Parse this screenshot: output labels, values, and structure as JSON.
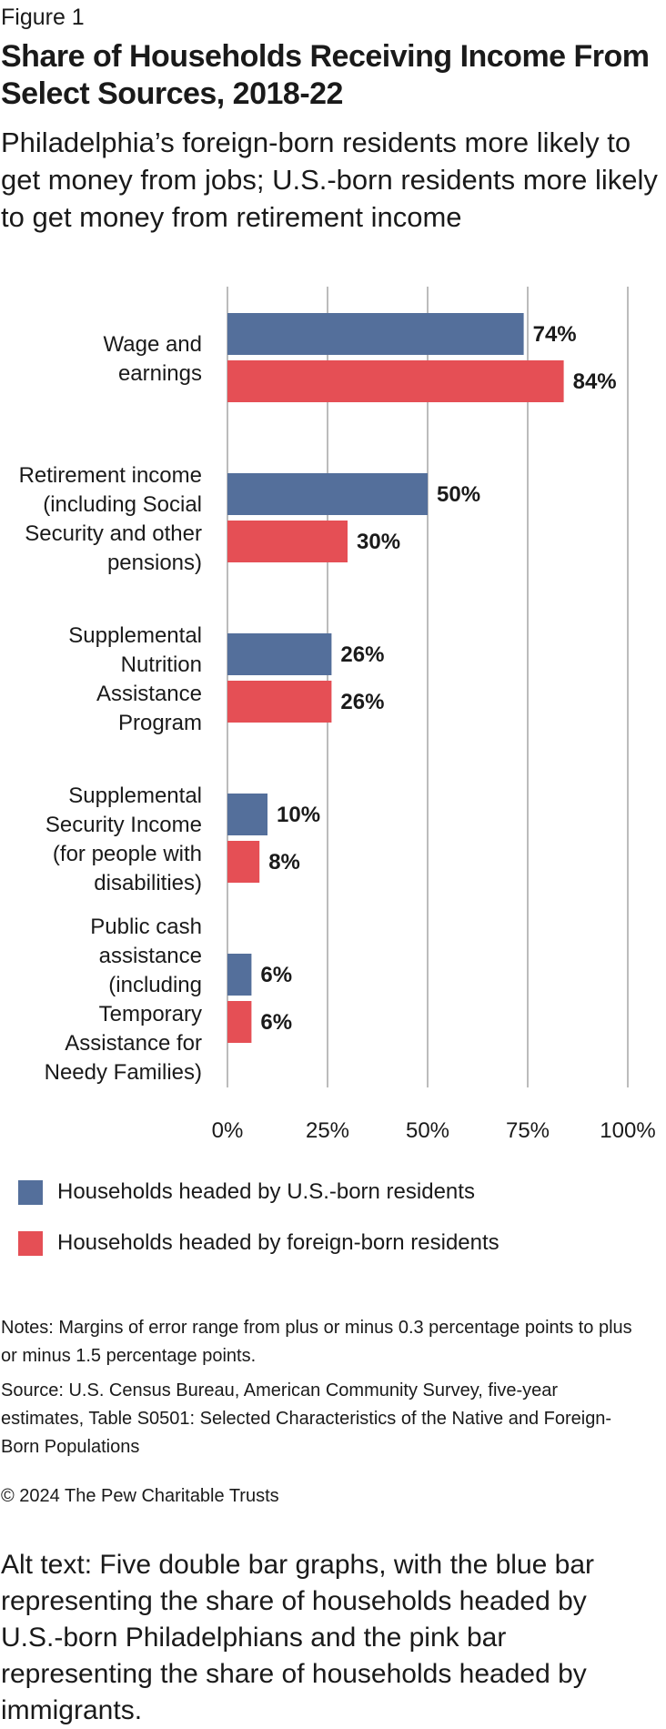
{
  "figure_label": "Figure 1",
  "title": "Share of Households Receiving Income From Select Sources, 2018-22",
  "subtitle": "Philadelphia’s foreign-born residents more likely to get money from jobs; U.S.-born residents more likely to get money from retirement income",
  "chart_data": {
    "type": "bar",
    "orientation": "horizontal",
    "categories": [
      [
        "Wage and",
        "earnings"
      ],
      [
        "Retirement income",
        "(including Social",
        "Security and other",
        "pensions)"
      ],
      [
        "Supplemental",
        "Nutrition",
        "Assistance",
        "Program"
      ],
      [
        "Supplemental",
        "Security Income",
        "(for people with",
        "disabilities)"
      ],
      [
        "Public cash",
        "assistance",
        "(including",
        "Temporary",
        "Assistance for",
        "Needy Families)"
      ]
    ],
    "series": [
      {
        "name": "Households headed by U.S.-born residents",
        "color": "#546f9b",
        "values": [
          74,
          50,
          26,
          10,
          6
        ]
      },
      {
        "name": "Households headed by foreign-born residents",
        "color": "#e54f55",
        "values": [
          84,
          30,
          26,
          8,
          6
        ]
      }
    ],
    "value_suffix": "%",
    "xlim": [
      0,
      100
    ],
    "xticks": [
      0,
      25,
      50,
      75,
      100
    ],
    "tick_labels": [
      "0%",
      "25%",
      "50%",
      "75%",
      "100%"
    ],
    "grid": true,
    "legend_position": "bottom"
  },
  "legend": {
    "us_born": "Households headed by U.S.-born residents",
    "foreign_born": "Households headed by foreign-born residents",
    "us_born_color": "#546f9b",
    "foreign_born_color": "#e54f55"
  },
  "notes": "Notes: Margins of error range from plus or minus 0.3 percentage points to plus or minus 1.5 percentage points.",
  "source": "Source: U.S. Census Bureau, American Community Survey, five-year estimates, Table S0501: Selected Characteristics of the Native and Foreign-Born Populations",
  "copyright": "© 2024 The Pew Charitable Trusts",
  "alt_text": "Alt text: Five double bar graphs, with the blue bar representing the share of households headed by U.S.-born Philadelphians and the pink bar representing the share of households headed by immigrants."
}
